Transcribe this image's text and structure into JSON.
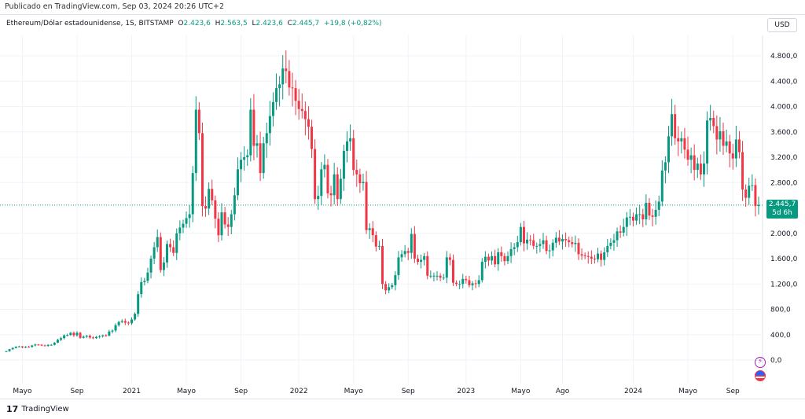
{
  "published": "Publicado en TradingView.com, Sep 03, 2024 20:26 UTC+2",
  "legend": {
    "symbol": "Ethereum/Dólar estadounidense, 1S, BITSTAMP",
    "o_label": "O",
    "o": "2.423,6",
    "h_label": "H",
    "h": "2.563,5",
    "l_label": "L",
    "l": "2.423,6",
    "c_label": "C",
    "c": "2.445,7",
    "change": "+19,8 (+0,82%)"
  },
  "currency_button": "USD",
  "price_label": {
    "value": "2.445,7",
    "countdown": "5d 6h"
  },
  "footer": {
    "brand": "TradingView"
  },
  "colors": {
    "up": "#089981",
    "down": "#f23645"
  },
  "chart_data": {
    "type": "candlestick",
    "interval": "1W",
    "ylim": [
      -300,
      5000
    ],
    "y_ticks": [
      {
        "v": 4800,
        "l": "4.800,0"
      },
      {
        "v": 4400,
        "l": "4.400,0"
      },
      {
        "v": 4000,
        "l": "4.000,0"
      },
      {
        "v": 3600,
        "l": "3.600,0"
      },
      {
        "v": 3200,
        "l": "3.200,0"
      },
      {
        "v": 2800,
        "l": "2.800,0"
      },
      {
        "v": 2000,
        "l": "2.000,0"
      },
      {
        "v": 1600,
        "l": "1.600,0"
      },
      {
        "v": 1200,
        "l": "1.200,0"
      },
      {
        "v": 800,
        "l": "800,0"
      },
      {
        "v": 400,
        "l": "400,0"
      },
      {
        "v": 0,
        "l": "0,0"
      }
    ],
    "x_ticks": [
      {
        "i": 5,
        "l": "Mayo"
      },
      {
        "i": 22,
        "l": "Sep"
      },
      {
        "i": 39,
        "l": "2021"
      },
      {
        "i": 56,
        "l": "Mayo"
      },
      {
        "i": 73,
        "l": "Sep"
      },
      {
        "i": 91,
        "l": "2022"
      },
      {
        "i": 108,
        "l": "Mayo"
      },
      {
        "i": 125,
        "l": "Sep"
      },
      {
        "i": 143,
        "l": "2023"
      },
      {
        "i": 160,
        "l": "Mayo"
      },
      {
        "i": 173,
        "l": "Ago"
      },
      {
        "i": 195,
        "l": "2024"
      },
      {
        "i": 212,
        "l": "Mayo"
      },
      {
        "i": 226,
        "l": "Sep"
      }
    ],
    "last_price": 2445.7,
    "open_first": 130,
    "closes": [
      140,
      170,
      190,
      210,
      215,
      200,
      210,
      205,
      230,
      245,
      240,
      230,
      225,
      240,
      240,
      275,
      320,
      345,
      390,
      395,
      430,
      390,
      430,
      350,
      370,
      385,
      355,
      345,
      365,
      375,
      390,
      385,
      450,
      465,
      550,
      600,
      615,
      590,
      580,
      640,
      730,
      1040,
      1230,
      1250,
      1380,
      1600,
      1780,
      1940,
      1420,
      1540,
      1830,
      1780,
      1690,
      2000,
      2090,
      2150,
      2240,
      2300,
      2950,
      3950,
      3580,
      2430,
      2390,
      2700,
      2520,
      2230,
      1970,
      2330,
      2140,
      2100,
      2300,
      2600,
      3010,
      3160,
      3200,
      3230,
      3950,
      3380,
      3420,
      2950,
      3420,
      3580,
      3850,
      4070,
      4290,
      4350,
      4600,
      4560,
      4300,
      4290,
      4090,
      3960,
      3930,
      3800,
      3680,
      3330,
      2540,
      2590,
      3010,
      3080,
      2630,
      2600,
      2930,
      2540,
      2860,
      3300,
      3450,
      3500,
      3000,
      2930,
      2790,
      2810,
      2050,
      2080,
      1970,
      1790,
      1800,
      1200,
      1100,
      1150,
      1180,
      1340,
      1620,
      1670,
      1720,
      1690,
      1990,
      1600,
      1550,
      1580,
      1640,
      1330,
      1330,
      1330,
      1330,
      1300,
      1300,
      1620,
      1580,
      1220,
      1200,
      1200,
      1280,
      1260,
      1180,
      1210,
      1200,
      1260,
      1550,
      1630,
      1570,
      1640,
      1510,
      1700,
      1640,
      1560,
      1640,
      1750,
      1780,
      1860,
      2100,
      1840,
      1900,
      1890,
      1800,
      1800,
      1830,
      1890,
      1720,
      1730,
      1850,
      1930,
      1870,
      1910,
      1890,
      1860,
      1830,
      1850,
      1670,
      1650,
      1640,
      1630,
      1600,
      1590,
      1680,
      1580,
      1700,
      1800,
      1850,
      1890,
      2030,
      2010,
      2100,
      2250,
      2260,
      2200,
      2300,
      2300,
      2220,
      2480,
      2280,
      2260,
      2370,
      2500,
      2990,
      3120,
      3530,
      3880,
      3500,
      3450,
      3500,
      3320,
      3160,
      3230,
      3000,
      3100,
      2930,
      3100,
      3780,
      3820,
      3690,
      3480,
      3610,
      3380,
      3450,
      3260,
      3180,
      3480,
      3280,
      2690,
      2560,
      2750,
      2760,
      2430,
      2445.7
    ]
  }
}
